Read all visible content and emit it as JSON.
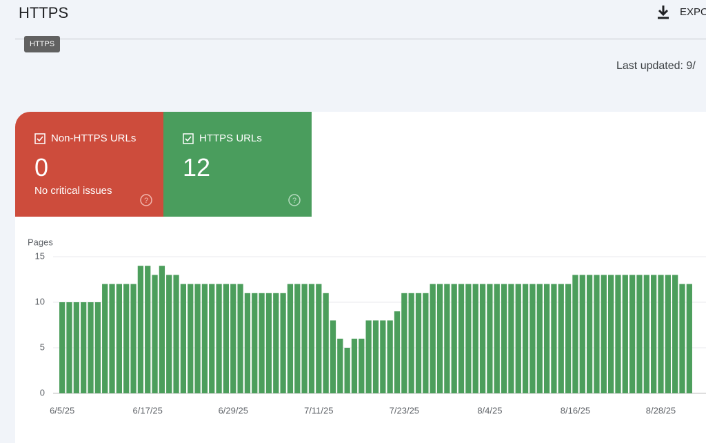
{
  "header": {
    "title": "HTTPS",
    "export": "EXPO",
    "tooltip": "HTTPS",
    "last_updated": "Last updated: 9/"
  },
  "cards": [
    {
      "label": "Non-HTTPS URLs",
      "value": 0,
      "note": "No critical issues"
    },
    {
      "label": "HTTPS URLs",
      "value": 12
    }
  ],
  "chart_data": {
    "type": "bar",
    "y_label": "Pages",
    "color": "#4c9e5c",
    "categories": [
      "6/5/25",
      null,
      null,
      null,
      null,
      null,
      null,
      null,
      null,
      null,
      null,
      null,
      "6/17/25",
      null,
      null,
      null,
      null,
      null,
      null,
      null,
      null,
      null,
      null,
      null,
      "6/29/25",
      null,
      null,
      null,
      null,
      null,
      null,
      null,
      null,
      null,
      null,
      null,
      "7/11/25",
      null,
      null,
      null,
      null,
      null,
      null,
      null,
      null,
      null,
      null,
      null,
      "7/23/25",
      null,
      null,
      null,
      null,
      null,
      null,
      null,
      null,
      null,
      null,
      null,
      "8/4/25",
      null,
      null,
      null,
      null,
      null,
      null,
      null,
      null,
      null,
      null,
      null,
      "8/16/25",
      null,
      null,
      null,
      null,
      null,
      null,
      null,
      null,
      null,
      null,
      null,
      "8/28/25",
      null,
      null,
      null,
      null
    ],
    "values": [
      10,
      10,
      10,
      10,
      10,
      10,
      12,
      12,
      12,
      12,
      12,
      14,
      14,
      13,
      14,
      13,
      13,
      12,
      12,
      12,
      12,
      12,
      12,
      12,
      12,
      12,
      11,
      11,
      11,
      11,
      11,
      11,
      12,
      12,
      12,
      12,
      12,
      11,
      8,
      6,
      5,
      6,
      6,
      8,
      8,
      8,
      8,
      9,
      11,
      11,
      11,
      11,
      12,
      12,
      12,
      12,
      12,
      12,
      12,
      12,
      12,
      12,
      12,
      12,
      12,
      12,
      12,
      12,
      12,
      12,
      12,
      12,
      13,
      13,
      13,
      13,
      13,
      13,
      13,
      13,
      13,
      13,
      13,
      13,
      13,
      13,
      13,
      12,
      12
    ],
    "ylim": [
      0,
      15
    ],
    "yticks": [
      0,
      5,
      10,
      15
    ],
    "grid": true
  }
}
